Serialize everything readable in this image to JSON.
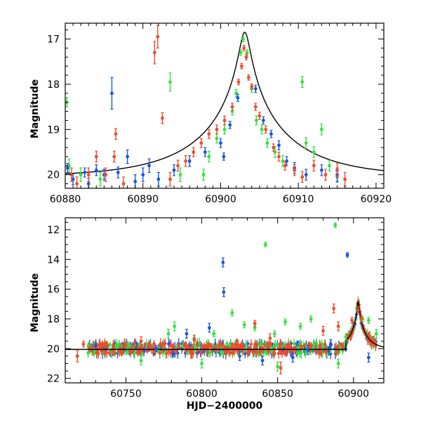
{
  "chart_data": [
    {
      "type": "scatter",
      "title": "",
      "xlabel": "",
      "ylabel": "Magnitude",
      "xlim": [
        60880,
        60921
      ],
      "ylim": [
        20.3,
        16.65
      ],
      "y_inverted": true,
      "grid": false,
      "xticks": [
        60880,
        60890,
        60900,
        60910,
        60920
      ],
      "yticks": [
        17,
        18,
        19,
        20
      ],
      "xtick_labels": [
        "60880",
        "60890",
        "60900",
        "60910",
        "60920"
      ],
      "ytick_labels": [
        "17",
        "18",
        "19",
        "20"
      ],
      "colors": {
        "red": "#f04a2e",
        "green": "#33e23d",
        "blue": "#1a55e0",
        "model": "#000000"
      },
      "model_curve": {
        "t0": 60903.1,
        "peak_mag": 16.85,
        "baseline_mag": 20.05,
        "tE": 12,
        "u0": 0.055
      },
      "series": [
        {
          "color_key": "green",
          "points": [
            [
              60880.2,
              18.4,
              0.1
            ],
            [
              60880.5,
              19.8,
              0.15
            ],
            [
              60882.0,
              20.0,
              0.15
            ],
            [
              60884.5,
              20.1,
              0.15
            ],
            [
              60893.5,
              17.95,
              0.2
            ],
            [
              60894.8,
              20.0,
              0.15
            ],
            [
              60897.8,
              20.0,
              0.12
            ],
            [
              60898.5,
              19.6,
              0.12
            ],
            [
              60899.5,
              19.2,
              0.1
            ],
            [
              60900.5,
              19.0,
              0.1
            ],
            [
              60901.5,
              18.6,
              0.08
            ],
            [
              60902.0,
              18.2,
              0.08
            ],
            [
              60902.6,
              17.3,
              0.06
            ],
            [
              60902.9,
              17.0,
              0.06
            ],
            [
              60903.4,
              17.3,
              0.06
            ],
            [
              60904.0,
              18.1,
              0.08
            ],
            [
              60904.6,
              18.8,
              0.1
            ],
            [
              60905.3,
              19.0,
              0.1
            ],
            [
              60906.0,
              19.3,
              0.1
            ],
            [
              60907.0,
              19.5,
              0.12
            ],
            [
              60908.0,
              19.7,
              0.12
            ],
            [
              60910.5,
              17.95,
              0.12
            ],
            [
              60911.0,
              19.3,
              0.12
            ],
            [
              60912.0,
              19.5,
              0.12
            ],
            [
              60913.0,
              19.0,
              0.12
            ],
            [
              60914.0,
              19.8,
              0.12
            ],
            [
              60915.0,
              20.05,
              0.12
            ]
          ]
        },
        {
          "color_key": "blue",
          "points": [
            [
              60880.3,
              19.85,
              0.1
            ],
            [
              60881.0,
              20.1,
              0.12
            ],
            [
              60882.5,
              19.95,
              0.1
            ],
            [
              60883.0,
              20.2,
              0.12
            ],
            [
              60884.0,
              19.9,
              0.12
            ],
            [
              60885.0,
              20.0,
              0.12
            ],
            [
              60886.0,
              18.2,
              0.35
            ],
            [
              60886.8,
              19.95,
              0.12
            ],
            [
              60888.0,
              19.6,
              0.15
            ],
            [
              60889.0,
              20.15,
              0.15
            ],
            [
              60890.0,
              20.0,
              0.15
            ],
            [
              60890.8,
              19.8,
              0.15
            ],
            [
              60892.0,
              20.1,
              0.15
            ],
            [
              60894.0,
              19.9,
              0.12
            ],
            [
              60896.0,
              19.7,
              0.12
            ],
            [
              60898.0,
              19.5,
              0.1
            ],
            [
              60900.0,
              19.3,
              0.1
            ],
            [
              60900.4,
              19.6,
              0.08
            ],
            [
              60901.2,
              18.9,
              0.08
            ],
            [
              60902.2,
              18.3,
              0.08
            ],
            [
              60904.5,
              18.1,
              0.08
            ],
            [
              60905.5,
              18.8,
              0.08
            ],
            [
              60906.5,
              19.1,
              0.08
            ],
            [
              60907.5,
              19.35,
              0.1
            ],
            [
              60908.5,
              19.7,
              0.1
            ],
            [
              60909.5,
              19.85,
              0.12
            ],
            [
              60911.0,
              20.0,
              0.12
            ],
            [
              60913.0,
              19.9,
              0.12
            ],
            [
              60915.0,
              20.0,
              0.15
            ]
          ]
        },
        {
          "color_key": "red",
          "points": [
            [
              60880.8,
              20.0,
              0.15
            ],
            [
              60881.5,
              20.2,
              0.15
            ],
            [
              60883.0,
              20.0,
              0.15
            ],
            [
              60884.0,
              19.6,
              0.12
            ],
            [
              60885.2,
              20.0,
              0.15
            ],
            [
              60886.3,
              19.6,
              0.12
            ],
            [
              60886.5,
              19.1,
              0.12
            ],
            [
              60887.5,
              20.2,
              0.15
            ],
            [
              60891.5,
              17.3,
              0.25
            ],
            [
              60891.9,
              16.95,
              0.25
            ],
            [
              60892.5,
              18.75,
              0.12
            ],
            [
              60893.5,
              20.1,
              0.15
            ],
            [
              60894.5,
              19.8,
              0.12
            ],
            [
              60895.5,
              19.7,
              0.12
            ],
            [
              60896.5,
              19.5,
              0.1
            ],
            [
              60897.5,
              19.3,
              0.1
            ],
            [
              60898.5,
              19.1,
              0.1
            ],
            [
              60899.5,
              19.0,
              0.1
            ],
            [
              60900.5,
              18.8,
              0.1
            ],
            [
              60901.5,
              18.5,
              0.08
            ],
            [
              60902.3,
              17.95,
              0.06
            ],
            [
              60902.7,
              17.6,
              0.06
            ],
            [
              60903.0,
              17.2,
              0.06
            ],
            [
              60903.3,
              17.4,
              0.06
            ],
            [
              60903.6,
              17.85,
              0.06
            ],
            [
              60904.0,
              18.05,
              0.06
            ],
            [
              60904.5,
              18.5,
              0.08
            ],
            [
              60905.0,
              18.7,
              0.08
            ],
            [
              60905.8,
              19.0,
              0.08
            ],
            [
              60906.8,
              19.4,
              0.08
            ],
            [
              60907.5,
              19.6,
              0.1
            ],
            [
              60908.3,
              19.8,
              0.1
            ],
            [
              60909.5,
              19.9,
              0.12
            ],
            [
              60910.5,
              20.05,
              0.12
            ],
            [
              60912.0,
              19.8,
              0.12
            ],
            [
              60913.5,
              20.0,
              0.12
            ],
            [
              60915.0,
              19.9,
              0.15
            ],
            [
              60916.0,
              20.1,
              0.15
            ]
          ]
        }
      ]
    },
    {
      "type": "scatter",
      "title": "",
      "xlabel": "HJD−2400000",
      "ylabel": "Magnitude",
      "xlim": [
        60710,
        60920
      ],
      "ylim": [
        22.3,
        11.2
      ],
      "y_inverted": true,
      "grid": false,
      "xticks": [
        60750,
        60800,
        60850,
        60900
      ],
      "yticks": [
        12,
        14,
        16,
        18,
        20,
        22
      ],
      "xtick_labels": [
        "60750",
        "60800",
        "60850",
        "60900"
      ],
      "ytick_labels": [
        "12",
        "14",
        "16",
        "18",
        "20",
        "22"
      ],
      "colors": {
        "red": "#f04a2e",
        "green": "#33e23d",
        "blue": "#1a55e0",
        "model": "#000000"
      },
      "model_curve": {
        "t0": 60903.1,
        "peak_mag": 16.85,
        "baseline_mag": 20.05,
        "tE": 12,
        "u0": 0.055
      },
      "series": [
        {
          "color_key": "green",
          "points": [
            [
              60778,
              19.0,
              0.3
            ],
            [
              60782,
              18.5,
              0.3
            ],
            [
              60795,
              19.3,
              0.2
            ],
            [
              60808,
              19.0,
              0.2
            ],
            [
              60820,
              17.6,
              0.2
            ],
            [
              60828,
              18.4,
              0.2
            ],
            [
              60835,
              18.6,
              0.2
            ],
            [
              60842,
              13.0,
              0.15
            ],
            [
              60848,
              19.0,
              0.2
            ],
            [
              60855,
              18.2,
              0.2
            ],
            [
              60865,
              18.5,
              0.2
            ],
            [
              60872,
              18.0,
              0.2
            ],
            [
              60888,
              11.7,
              0.15
            ],
            [
              60895,
              19.2,
              0.2
            ],
            [
              60903,
              17.4,
              0.2
            ],
            [
              60906,
              18.0,
              0.2
            ],
            [
              60910,
              18.1,
              0.2
            ],
            [
              60915,
              19.0,
              0.3
            ],
            [
              60760,
              20.8,
              0.3
            ],
            [
              60800,
              21.0,
              0.3
            ],
            [
              60850,
              21.2,
              0.3
            ],
            [
              60890,
              21.0,
              0.3
            ]
          ]
        },
        {
          "color_key": "blue",
          "points": [
            [
              60730,
              19.8,
              0.2
            ],
            [
              60770,
              20.0,
              0.2
            ],
            [
              60790,
              19.0,
              0.3
            ],
            [
              60805,
              18.6,
              0.3
            ],
            [
              60814,
              14.2,
              0.3
            ],
            [
              60814.5,
              16.2,
              0.3
            ],
            [
              60825,
              20.5,
              0.3
            ],
            [
              60840,
              20.8,
              0.3
            ],
            [
              60860,
              20.6,
              0.3
            ],
            [
              60870,
              20.1,
              0.3
            ],
            [
              60885,
              19.7,
              0.3
            ],
            [
              60896,
              13.7,
              0.15
            ],
            [
              60910,
              20.6,
              0.3
            ]
          ]
        },
        {
          "color_key": "red",
          "points": [
            [
              60718,
              20.5,
              0.4
            ],
            [
              60722,
              19.7,
              0.2
            ],
            [
              60760,
              19.5,
              0.3
            ],
            [
              60795,
              19.4,
              0.3
            ],
            [
              60835,
              18.3,
              0.2
            ],
            [
              60845,
              19.3,
              0.3
            ],
            [
              60852,
              21.3,
              0.4
            ],
            [
              60880,
              18.8,
              0.3
            ],
            [
              60887,
              17.3,
              0.3
            ],
            [
              60890,
              18.5,
              0.3
            ],
            [
              60899,
              18.1,
              0.2
            ],
            [
              60903,
              17.4,
              0.2
            ],
            [
              60905,
              18.0,
              0.2
            ]
          ]
        }
      ]
    }
  ]
}
